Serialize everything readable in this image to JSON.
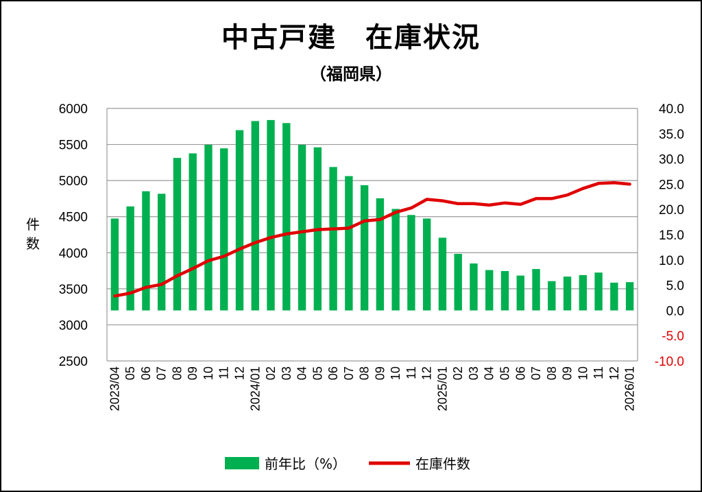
{
  "title": "中古戸建　在庫状況",
  "subtitle": "（福岡県）",
  "colors": {
    "bar": "#00b050",
    "line": "#e00000",
    "grid": "#9a9a9a",
    "negative_tick": "#e00000"
  },
  "chart_data": {
    "type": "bar",
    "categories": [
      "2023/04",
      "05",
      "06",
      "07",
      "08",
      "09",
      "10",
      "11",
      "12",
      "2024/01",
      "02",
      "03",
      "04",
      "05",
      "06",
      "07",
      "08",
      "09",
      "10",
      "11",
      "12",
      "2025/01",
      "02",
      "03",
      "04",
      "05",
      "06",
      "07",
      "08",
      "09",
      "10",
      "11",
      "12",
      "2026/01"
    ],
    "ylabel": "件数",
    "ylim": [
      2500,
      6000
    ],
    "y_ticks": [
      "6000",
      "5500",
      "5000",
      "4500",
      "4000",
      "3500",
      "3000",
      "2500"
    ],
    "y2lim": [
      -10,
      40
    ],
    "y2_ticks": [
      "40.0",
      "35.0",
      "30.0",
      "25.0",
      "20.0",
      "15.0",
      "10.0",
      "5.0",
      "0.0",
      "-5.0",
      "-10.0"
    ],
    "grid": true,
    "legend_position": "bottom",
    "series": [
      {
        "name": "前年比（%）",
        "type": "bar",
        "axis": "right",
        "values": [
          18.2,
          20.6,
          23.6,
          23.1,
          30.2,
          31.1,
          32.8,
          32.1,
          35.7,
          37.5,
          37.7,
          37.1,
          32.8,
          32.3,
          28.4,
          26.6,
          24.8,
          22.2,
          20.1,
          18.9,
          18.2,
          14.4,
          11.2,
          9.3,
          8.0,
          7.8,
          6.9,
          8.2,
          5.8,
          6.7,
          7.0,
          7.5,
          5.5,
          5.6
        ]
      },
      {
        "name": "在庫件数",
        "type": "line",
        "axis": "left",
        "values": [
          3400,
          3440,
          3520,
          3560,
          3680,
          3780,
          3890,
          3950,
          4050,
          4140,
          4210,
          4260,
          4290,
          4320,
          4330,
          4340,
          4440,
          4460,
          4560,
          4620,
          4740,
          4720,
          4680,
          4680,
          4660,
          4690,
          4670,
          4750,
          4750,
          4800,
          4890,
          4960,
          4970,
          4950
        ]
      }
    ]
  }
}
